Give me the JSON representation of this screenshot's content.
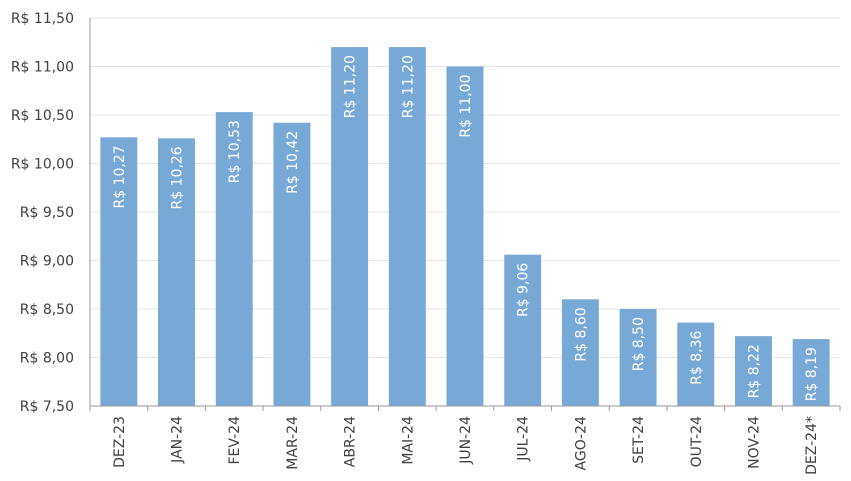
{
  "chart_data": {
    "type": "bar",
    "title": "",
    "xlabel": "",
    "ylabel": "",
    "categories": [
      "DEZ-23",
      "JAN-24",
      "FEV-24",
      "MAR-24",
      "ABR-24",
      "MAI-24",
      "JUN-24",
      "JUL-24",
      "AGO-24",
      "SET-24",
      "OUT-24",
      "NOV-24",
      "DEZ-24*"
    ],
    "values": [
      10.27,
      10.26,
      10.53,
      10.42,
      11.2,
      11.2,
      11.0,
      9.06,
      8.6,
      8.5,
      8.36,
      8.22,
      8.19
    ],
    "value_labels": [
      "R$ 10,27",
      "R$ 10,26",
      "R$ 10,53",
      "R$ 10,42",
      "R$ 11,20",
      "R$ 11,20",
      "R$ 11,00",
      "R$ 9,06",
      "R$ 8,60",
      "R$ 8,50",
      "R$ 8,36",
      "R$ 8,22",
      "R$ 8,19"
    ],
    "ylim": [
      7.5,
      11.5
    ],
    "yticks": [
      7.5,
      8.0,
      8.5,
      9.0,
      9.5,
      10.0,
      10.5,
      11.0,
      11.5
    ],
    "ytick_labels": [
      "R$ 7,50",
      "R$ 8,00",
      "R$ 8,50",
      "R$ 9,00",
      "R$ 9,50",
      "R$ 10,00",
      "R$ 10,50",
      "R$ 11,00",
      "R$ 11,50"
    ],
    "grid": true,
    "bar_color": "#78a9d6",
    "label_color": "#ffffff"
  }
}
